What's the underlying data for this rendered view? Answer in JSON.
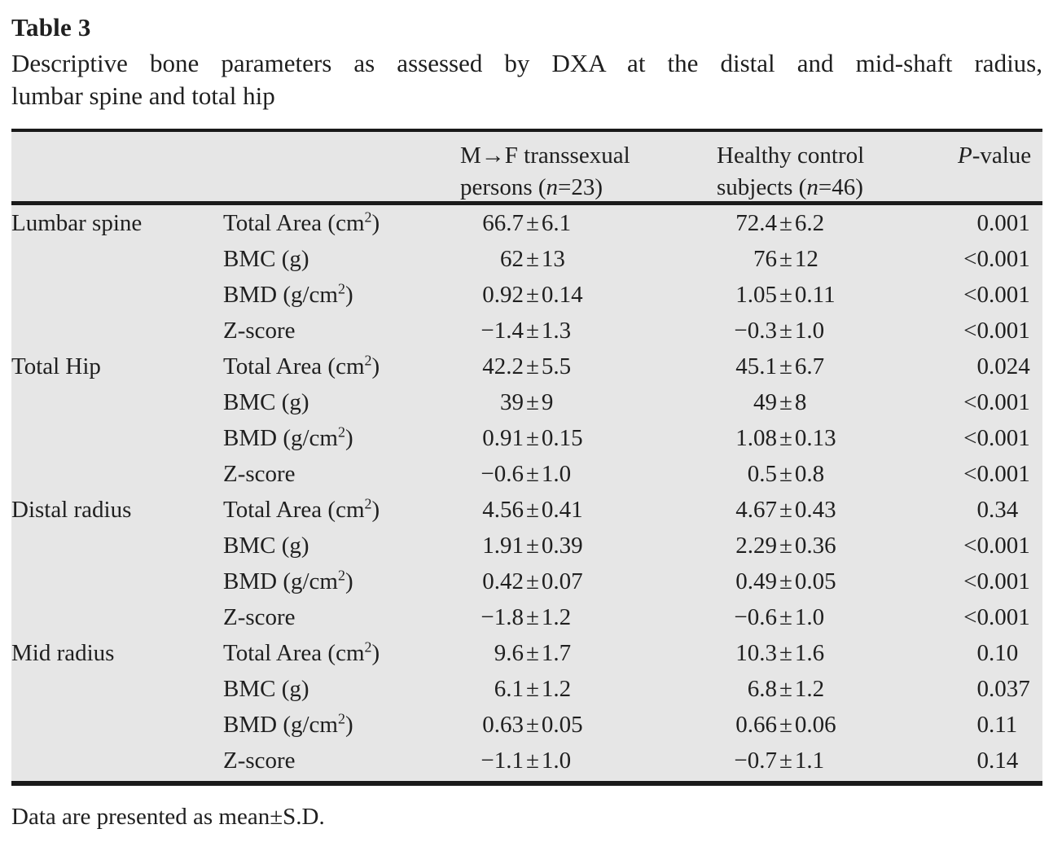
{
  "colors": {
    "table_bg": "#e6e6e6",
    "rule_color": "#1a1a1a",
    "text_color": "#1f1f1f",
    "page_bg": "#ffffff"
  },
  "doc": {
    "title": "Table 3",
    "caption_line1": "Descriptive bone parameters as assessed by DXA at the distal and mid-shaft radius,",
    "caption_line2": "lumbar spine and total hip",
    "footnote": "Data are presented as mean±S.D."
  },
  "table": {
    "header": {
      "mtf": {
        "lines": [
          [
            {
              "t": "M→F transsexual"
            }
          ],
          [
            {
              "t": "persons ("
            },
            {
              "t": "n",
              "i": true
            },
            {
              "t": "=23)"
            }
          ]
        ]
      },
      "control": {
        "lines": [
          [
            {
              "t": "Healthy control"
            }
          ],
          [
            {
              "t": "subjects ("
            },
            {
              "t": "n",
              "i": true
            },
            {
              "t": "=46)"
            }
          ]
        ]
      },
      "pvalue": {
        "lines": [
          [
            {
              "t": "P",
              "i": true
            },
            {
              "t": "-value"
            }
          ]
        ]
      }
    },
    "sections": [
      {
        "site": "Lumbar spine",
        "rows": [
          {
            "param": [
              {
                "t": "Total Area (cm"
              },
              {
                "t": "2",
                "sup": true
              },
              {
                "t": ")"
              }
            ],
            "mtf": "66.7±6.1",
            "control": "72.4±6.2",
            "p": "0.001"
          },
          {
            "param": [
              {
                "t": "BMC (g)"
              }
            ],
            "mtf": "62±13",
            "control": "76±12",
            "p": "<0.001"
          },
          {
            "param": [
              {
                "t": "BMD (g/cm"
              },
              {
                "t": "2",
                "sup": true
              },
              {
                "t": ")"
              }
            ],
            "mtf": "0.92±0.14",
            "control": "1.05±0.11",
            "p": "<0.001"
          },
          {
            "param": [
              {
                "t": "Z-score"
              }
            ],
            "mtf": "−1.4±1.3",
            "control": "−0.3±1.0",
            "p": "<0.001"
          }
        ]
      },
      {
        "site": "Total Hip",
        "rows": [
          {
            "param": [
              {
                "t": "Total Area (cm"
              },
              {
                "t": "2",
                "sup": true
              },
              {
                "t": ")"
              }
            ],
            "mtf": "42.2±5.5",
            "control": "45.1±6.7",
            "p": "0.024"
          },
          {
            "param": [
              {
                "t": "BMC (g)"
              }
            ],
            "mtf": "39±9",
            "control": "49±8",
            "p": "<0.001"
          },
          {
            "param": [
              {
                "t": "BMD (g/cm"
              },
              {
                "t": "2",
                "sup": true
              },
              {
                "t": ")"
              }
            ],
            "mtf": "0.91±0.15",
            "control": "1.08±0.13",
            "p": "<0.001"
          },
          {
            "param": [
              {
                "t": "Z-score"
              }
            ],
            "mtf": "−0.6±1.0",
            "control": "0.5±0.8",
            "p": "<0.001"
          }
        ]
      },
      {
        "site": "Distal radius",
        "rows": [
          {
            "param": [
              {
                "t": "Total Area (cm"
              },
              {
                "t": "2",
                "sup": true
              },
              {
                "t": ")"
              }
            ],
            "mtf": "4.56±0.41",
            "control": "4.67±0.43",
            "p": "0.34"
          },
          {
            "param": [
              {
                "t": "BMC (g)"
              }
            ],
            "mtf": "1.91±0.39",
            "control": "2.29±0.36",
            "p": "<0.001"
          },
          {
            "param": [
              {
                "t": "BMD (g/cm"
              },
              {
                "t": "2",
                "sup": true
              },
              {
                "t": ")"
              }
            ],
            "mtf": "0.42±0.07",
            "control": "0.49±0.05",
            "p": "<0.001"
          },
          {
            "param": [
              {
                "t": "Z-score"
              }
            ],
            "mtf": "−1.8±1.2",
            "control": "−0.6±1.0",
            "p": "<0.001"
          }
        ]
      },
      {
        "site": "Mid radius",
        "rows": [
          {
            "param": [
              {
                "t": "Total Area (cm"
              },
              {
                "t": "2",
                "sup": true
              },
              {
                "t": ")"
              }
            ],
            "mtf": "9.6±1.7",
            "control": "10.3±1.6",
            "p": "0.10"
          },
          {
            "param": [
              {
                "t": "BMC (g)"
              }
            ],
            "mtf": "6.1±1.2",
            "control": "6.8±1.2",
            "p": "0.037"
          },
          {
            "param": [
              {
                "t": "BMD (g/cm"
              },
              {
                "t": "2",
                "sup": true
              },
              {
                "t": ")"
              }
            ],
            "mtf": "0.63±0.05",
            "control": "0.66±0.06",
            "p": "0.11"
          },
          {
            "param": [
              {
                "t": "Z-score"
              }
            ],
            "mtf": "−1.1±1.0",
            "control": "−0.7±1.1",
            "p": "0.14"
          }
        ]
      }
    ]
  }
}
